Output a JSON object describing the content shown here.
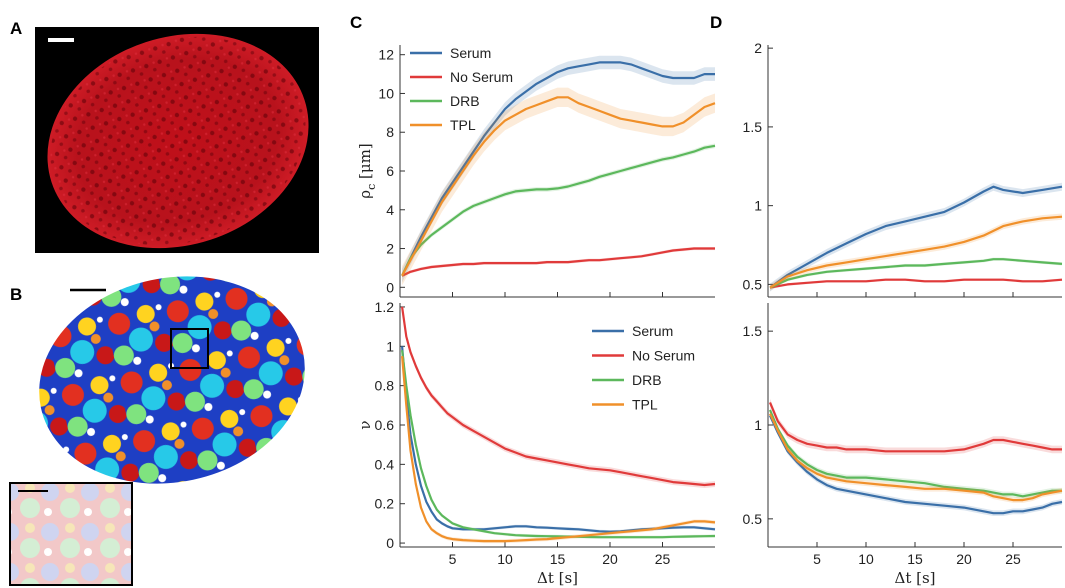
{
  "panels": {
    "A": "A",
    "B": "B",
    "C": "C",
    "D": "D"
  },
  "colors": {
    "serum": "#3a6fa8",
    "no_serum": "#e03a3a",
    "drb": "#5cb85c",
    "tpl": "#f0902a"
  },
  "chart_data": [
    {
      "id": "C-top",
      "type": "line",
      "ylabel": "ρ",
      "ylabel_sub": "c",
      "ylabel_unit": " [μm]",
      "xlim": [
        0,
        30
      ],
      "ylim": [
        -0.5,
        12.5
      ],
      "yticks": [
        0,
        2,
        4,
        6,
        8,
        10,
        12
      ],
      "xticks": [
        5,
        10,
        15,
        20,
        25
      ],
      "x": [
        0.2,
        1,
        2,
        3,
        4,
        5,
        6,
        7,
        8,
        9,
        10,
        11,
        12,
        13,
        14,
        15,
        16,
        17,
        18,
        19,
        20,
        21,
        22,
        23,
        24,
        25,
        26,
        27,
        28,
        29,
        30
      ],
      "legend": "top-left",
      "series": [
        {
          "name": "Serum",
          "color_key": "serum",
          "band": 0.35,
          "values": [
            0.6,
            1.5,
            2.6,
            3.6,
            4.6,
            5.4,
            6.2,
            7.0,
            7.8,
            8.5,
            9.2,
            9.7,
            10.1,
            10.5,
            10.8,
            11.1,
            11.3,
            11.4,
            11.5,
            11.6,
            11.6,
            11.6,
            11.5,
            11.3,
            11.1,
            10.9,
            10.8,
            10.8,
            10.8,
            11.0,
            11.0
          ]
        },
        {
          "name": "No Serum",
          "color_key": "no_serum",
          "band": 0.08,
          "values": [
            0.6,
            0.8,
            0.95,
            1.05,
            1.1,
            1.15,
            1.2,
            1.2,
            1.25,
            1.25,
            1.25,
            1.25,
            1.25,
            1.25,
            1.3,
            1.3,
            1.3,
            1.35,
            1.4,
            1.4,
            1.45,
            1.5,
            1.55,
            1.6,
            1.7,
            1.8,
            1.9,
            1.95,
            2.0,
            2.0,
            2.0
          ]
        },
        {
          "name": "DRB",
          "color_key": "drb",
          "band": 0.12,
          "values": [
            0.6,
            1.5,
            2.2,
            2.7,
            3.1,
            3.5,
            3.9,
            4.2,
            4.4,
            4.6,
            4.8,
            4.95,
            5.0,
            5.05,
            5.05,
            5.1,
            5.2,
            5.35,
            5.5,
            5.7,
            5.85,
            6.0,
            6.15,
            6.3,
            6.45,
            6.6,
            6.7,
            6.85,
            7.0,
            7.2,
            7.3
          ]
        },
        {
          "name": "TPL",
          "color_key": "tpl",
          "band": 0.5,
          "values": [
            0.6,
            1.4,
            2.4,
            3.4,
            4.4,
            5.2,
            6.0,
            6.8,
            7.5,
            8.1,
            8.6,
            8.9,
            9.2,
            9.4,
            9.6,
            9.8,
            9.8,
            9.5,
            9.3,
            9.1,
            8.9,
            8.7,
            8.6,
            8.5,
            8.4,
            8.3,
            8.3,
            8.5,
            8.9,
            9.3,
            9.5
          ]
        }
      ]
    },
    {
      "id": "C-bottom",
      "type": "line",
      "ylabel": "ν",
      "xlabel": "Δt [s]",
      "xlim": [
        0,
        30
      ],
      "ylim": [
        -0.02,
        1.22
      ],
      "yticks": [
        0,
        0.2,
        0.4,
        0.6,
        0.8,
        1,
        1.2
      ],
      "xticks": [
        5,
        10,
        15,
        20,
        25
      ],
      "x": [
        0.2,
        0.6,
        1,
        1.5,
        2,
        2.5,
        3,
        3.5,
        4,
        4.5,
        5,
        6,
        7,
        8,
        9,
        10,
        11,
        12,
        13,
        14,
        15,
        16,
        17,
        18,
        19,
        20,
        21,
        22,
        23,
        24,
        25,
        26,
        27,
        28,
        29,
        30
      ],
      "legend": "top-right",
      "series": [
        {
          "name": "Serum",
          "color_key": "serum",
          "band": 0.008,
          "values": [
            1.0,
            0.75,
            0.55,
            0.4,
            0.29,
            0.21,
            0.16,
            0.12,
            0.1,
            0.085,
            0.075,
            0.07,
            0.07,
            0.07,
            0.075,
            0.08,
            0.085,
            0.085,
            0.08,
            0.078,
            0.075,
            0.072,
            0.07,
            0.065,
            0.06,
            0.058,
            0.06,
            0.065,
            0.07,
            0.072,
            0.075,
            0.078,
            0.08,
            0.08,
            0.075,
            0.07
          ]
        },
        {
          "name": "No Serum",
          "color_key": "no_serum",
          "band": 0.015,
          "values": [
            1.2,
            1.05,
            0.97,
            0.9,
            0.84,
            0.79,
            0.75,
            0.72,
            0.69,
            0.66,
            0.64,
            0.6,
            0.57,
            0.54,
            0.51,
            0.48,
            0.46,
            0.44,
            0.43,
            0.42,
            0.41,
            0.4,
            0.39,
            0.38,
            0.375,
            0.37,
            0.36,
            0.35,
            0.34,
            0.33,
            0.32,
            0.31,
            0.305,
            0.3,
            0.295,
            0.3
          ]
        },
        {
          "name": "DRB",
          "color_key": "drb",
          "band": 0.008,
          "values": [
            0.98,
            0.8,
            0.65,
            0.5,
            0.38,
            0.29,
            0.22,
            0.17,
            0.14,
            0.12,
            0.1,
            0.08,
            0.07,
            0.06,
            0.05,
            0.045,
            0.04,
            0.038,
            0.036,
            0.035,
            0.034,
            0.033,
            0.032,
            0.031,
            0.03,
            0.03,
            0.03,
            0.03,
            0.03,
            0.03,
            0.03,
            0.032,
            0.033,
            0.034,
            0.035,
            0.036
          ]
        },
        {
          "name": "TPL",
          "color_key": "tpl",
          "band": 0.01,
          "values": [
            0.95,
            0.7,
            0.47,
            0.3,
            0.18,
            0.11,
            0.07,
            0.05,
            0.035,
            0.025,
            0.02,
            0.015,
            0.012,
            0.01,
            0.01,
            0.01,
            0.012,
            0.015,
            0.018,
            0.02,
            0.025,
            0.03,
            0.035,
            0.04,
            0.045,
            0.05,
            0.055,
            0.06,
            0.065,
            0.07,
            0.08,
            0.09,
            0.1,
            0.11,
            0.11,
            0.105
          ]
        }
      ]
    },
    {
      "id": "D-top",
      "type": "line",
      "xlim": [
        0,
        30
      ],
      "ylim": [
        0.42,
        2.02
      ],
      "yticks": [
        0.5,
        1,
        1.5,
        2
      ],
      "xticks": [
        5,
        10,
        15,
        20,
        25
      ],
      "x": [
        0.2,
        2,
        4,
        6,
        8,
        10,
        12,
        14,
        16,
        18,
        20,
        22,
        23,
        24,
        26,
        28,
        30
      ],
      "series": [
        {
          "name": "Serum",
          "color_key": "serum",
          "band": 0.025,
          "values": [
            0.48,
            0.56,
            0.63,
            0.7,
            0.76,
            0.82,
            0.87,
            0.9,
            0.93,
            0.96,
            1.02,
            1.09,
            1.12,
            1.1,
            1.08,
            1.1,
            1.12
          ]
        },
        {
          "name": "No Serum",
          "color_key": "no_serum",
          "band": 0.008,
          "values": [
            0.48,
            0.5,
            0.51,
            0.52,
            0.52,
            0.52,
            0.53,
            0.53,
            0.52,
            0.52,
            0.53,
            0.53,
            0.53,
            0.53,
            0.52,
            0.52,
            0.53
          ]
        },
        {
          "name": "DRB",
          "color_key": "drb",
          "band": 0.01,
          "values": [
            0.48,
            0.53,
            0.56,
            0.58,
            0.59,
            0.6,
            0.61,
            0.62,
            0.62,
            0.63,
            0.64,
            0.65,
            0.66,
            0.66,
            0.65,
            0.64,
            0.63
          ]
        },
        {
          "name": "TPL",
          "color_key": "tpl",
          "band": 0.02,
          "values": [
            0.48,
            0.55,
            0.59,
            0.62,
            0.64,
            0.66,
            0.68,
            0.7,
            0.72,
            0.74,
            0.77,
            0.81,
            0.84,
            0.87,
            0.9,
            0.92,
            0.93
          ]
        }
      ]
    },
    {
      "id": "D-bottom",
      "type": "line",
      "xlabel": "Δt [s]",
      "xlim": [
        0,
        30
      ],
      "ylim": [
        0.35,
        1.65
      ],
      "yticks": [
        0.5,
        1,
        1.5
      ],
      "xticks": [
        5,
        10,
        15,
        20,
        25
      ],
      "x": [
        0.2,
        1,
        2,
        3,
        4,
        5,
        6,
        7,
        8,
        10,
        12,
        14,
        16,
        18,
        20,
        22,
        23,
        24,
        25,
        26,
        27,
        28,
        29,
        30
      ],
      "series": [
        {
          "name": "Serum",
          "color_key": "serum",
          "band": 0.015,
          "values": [
            1.05,
            0.96,
            0.86,
            0.8,
            0.75,
            0.71,
            0.68,
            0.66,
            0.65,
            0.63,
            0.61,
            0.59,
            0.58,
            0.57,
            0.56,
            0.54,
            0.53,
            0.53,
            0.54,
            0.54,
            0.55,
            0.56,
            0.58,
            0.59
          ]
        },
        {
          "name": "No Serum",
          "color_key": "no_serum",
          "band": 0.02,
          "values": [
            1.12,
            1.02,
            0.95,
            0.92,
            0.9,
            0.89,
            0.88,
            0.88,
            0.87,
            0.87,
            0.86,
            0.86,
            0.86,
            0.86,
            0.87,
            0.9,
            0.92,
            0.92,
            0.91,
            0.9,
            0.89,
            0.88,
            0.87,
            0.87
          ]
        },
        {
          "name": "DRB",
          "color_key": "drb",
          "band": 0.015,
          "values": [
            1.08,
            0.98,
            0.89,
            0.83,
            0.79,
            0.76,
            0.74,
            0.73,
            0.72,
            0.72,
            0.71,
            0.7,
            0.69,
            0.67,
            0.66,
            0.65,
            0.64,
            0.63,
            0.63,
            0.62,
            0.63,
            0.64,
            0.65,
            0.65
          ]
        },
        {
          "name": "TPL",
          "color_key": "tpl",
          "band": 0.015,
          "values": [
            1.06,
            0.97,
            0.87,
            0.81,
            0.77,
            0.74,
            0.72,
            0.71,
            0.7,
            0.69,
            0.68,
            0.67,
            0.66,
            0.66,
            0.65,
            0.64,
            0.62,
            0.61,
            0.6,
            0.6,
            0.61,
            0.63,
            0.64,
            0.65
          ]
        }
      ]
    }
  ]
}
